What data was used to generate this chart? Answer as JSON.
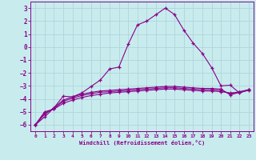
{
  "xlabel": "Windchill (Refroidissement éolien,°C)",
  "bg_color": "#c8ecee",
  "line_color": "#880088",
  "grid_color": "#b0d4d8",
  "xlim": [
    -0.5,
    23.5
  ],
  "ylim": [
    -6.5,
    3.5
  ],
  "xticks": [
    0,
    1,
    2,
    3,
    4,
    5,
    6,
    7,
    8,
    9,
    10,
    11,
    12,
    13,
    14,
    15,
    16,
    17,
    18,
    19,
    20,
    21,
    22,
    23
  ],
  "yticks": [
    -6,
    -5,
    -4,
    -3,
    -2,
    -1,
    0,
    1,
    2,
    3
  ],
  "series": [
    {
      "x": [
        0,
        1,
        2,
        3,
        4,
        5,
        6,
        7,
        8,
        9,
        10,
        11,
        12,
        13,
        14,
        15,
        16,
        17,
        18,
        19,
        20,
        21,
        22,
        23
      ],
      "y": [
        -6.0,
        -5.4,
        -4.7,
        -3.8,
        -3.85,
        -3.55,
        -3.05,
        -2.55,
        -1.7,
        -1.55,
        0.2,
        1.7,
        2.0,
        2.5,
        3.0,
        2.5,
        1.3,
        0.3,
        -0.5,
        -1.6,
        -3.0,
        -2.95,
        -3.55,
        -3.3
      ]
    },
    {
      "x": [
        0,
        1,
        2,
        3,
        4,
        5,
        6,
        7,
        8,
        9,
        10,
        11,
        12,
        13,
        14,
        15,
        16,
        17,
        18,
        19,
        20,
        21,
        22,
        23
      ],
      "y": [
        -6.0,
        -5.2,
        -4.7,
        -4.1,
        -3.85,
        -3.65,
        -3.5,
        -3.4,
        -3.35,
        -3.3,
        -3.25,
        -3.2,
        -3.15,
        -3.1,
        -3.05,
        -3.05,
        -3.1,
        -3.15,
        -3.2,
        -3.2,
        -3.25,
        -3.7,
        -3.5,
        -3.35
      ]
    },
    {
      "x": [
        0,
        1,
        2,
        3,
        4,
        5,
        6,
        7,
        8,
        9,
        10,
        11,
        12,
        13,
        14,
        15,
        16,
        17,
        18,
        19,
        20,
        21,
        22,
        23
      ],
      "y": [
        -6.0,
        -5.1,
        -4.75,
        -4.2,
        -3.95,
        -3.75,
        -3.6,
        -3.5,
        -3.45,
        -3.4,
        -3.35,
        -3.3,
        -3.25,
        -3.2,
        -3.15,
        -3.15,
        -3.2,
        -3.25,
        -3.3,
        -3.3,
        -3.35,
        -3.6,
        -3.45,
        -3.3
      ]
    },
    {
      "x": [
        0,
        1,
        2,
        3,
        4,
        5,
        6,
        7,
        8,
        9,
        10,
        11,
        12,
        13,
        14,
        15,
        16,
        17,
        18,
        19,
        20,
        21,
        22,
        23
      ],
      "y": [
        -6.0,
        -5.0,
        -4.8,
        -4.35,
        -4.1,
        -3.9,
        -3.75,
        -3.65,
        -3.55,
        -3.5,
        -3.45,
        -3.4,
        -3.35,
        -3.3,
        -3.25,
        -3.25,
        -3.3,
        -3.35,
        -3.4,
        -3.4,
        -3.45,
        -3.55,
        -3.5,
        -3.3
      ]
    }
  ]
}
